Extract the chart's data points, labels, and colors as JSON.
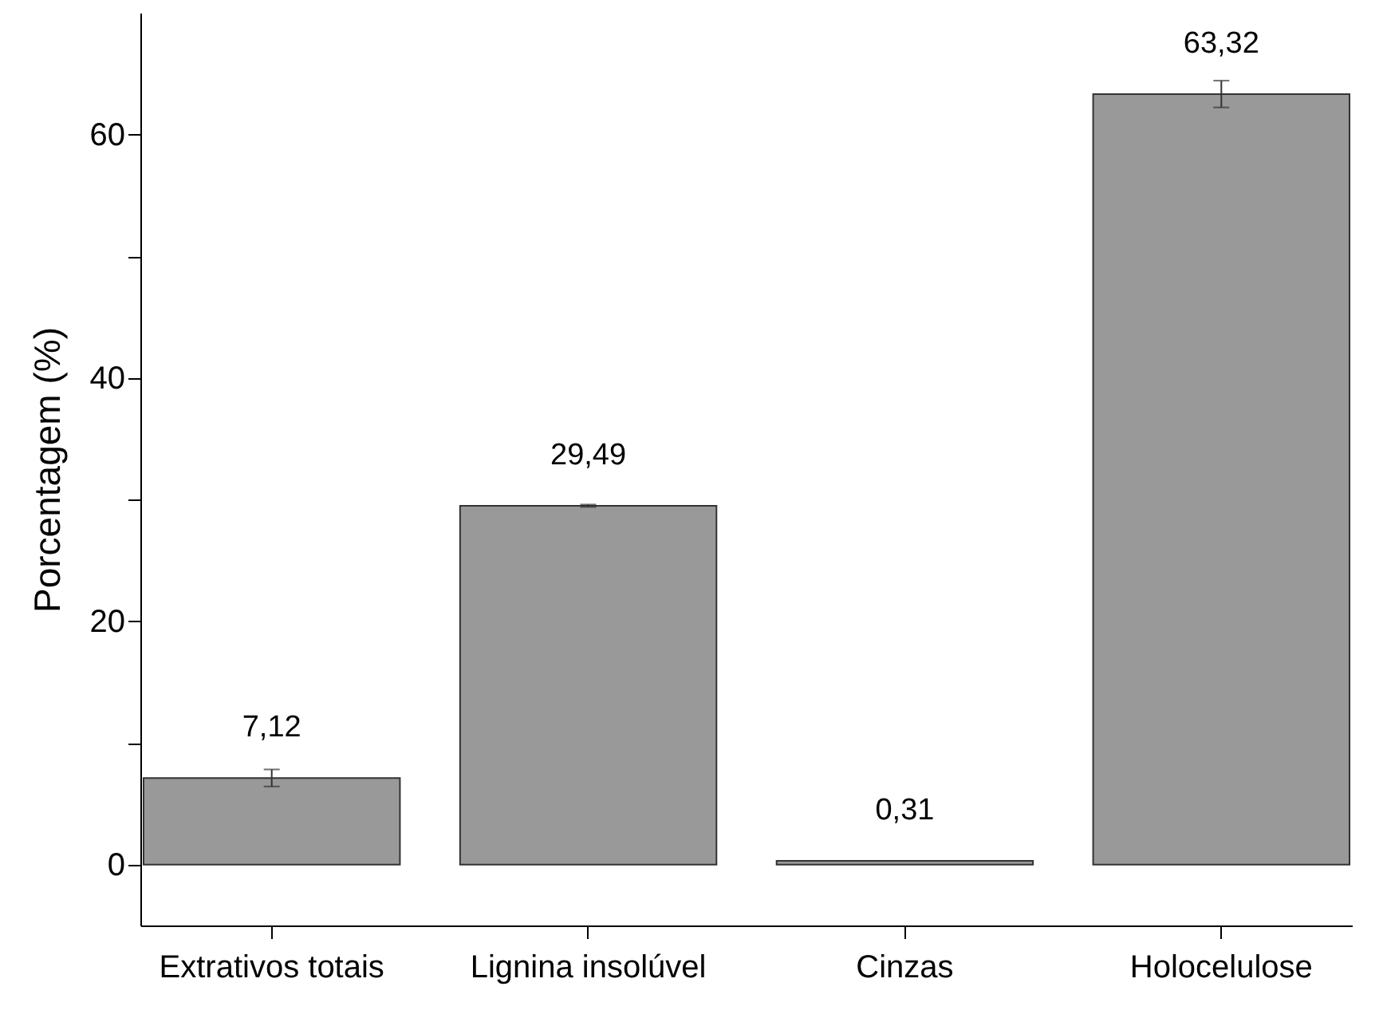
{
  "chart_data": {
    "type": "bar",
    "ylabel": "Porcentagem (%)",
    "categories": [
      "Extrativos totais",
      "Lignina insolúvel",
      "Cinzas",
      "Holocelulose"
    ],
    "values": [
      7.12,
      29.49,
      0.31,
      63.32
    ],
    "color": "#999999",
    "errors": [
      0.7,
      0.1,
      null,
      1.1
    ],
    "value_labels": [
      "7,12",
      "29,49",
      "0,31",
      "63,32"
    ],
    "ylim": [
      -5,
      70
    ],
    "yticks": [
      0,
      {
        "value": 10,
        "label": null
      },
      20,
      {
        "value": 30,
        "label": null
      },
      40,
      {
        "value": 50,
        "label": null
      },
      60
    ],
    "grid": false
  }
}
